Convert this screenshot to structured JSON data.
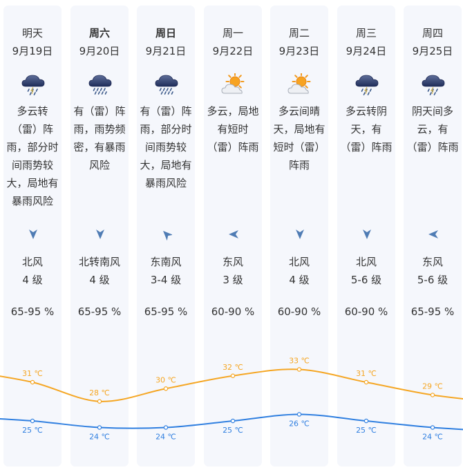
{
  "colors": {
    "high": "#f5a623",
    "low": "#2f7fe0",
    "arrow": "#4f7cb4"
  },
  "days": [
    {
      "day": "明天",
      "date": "9月19日",
      "icon": "thunder-rain-cloud-icon",
      "desc_lines": [
        "多云转",
        "（雷）阵",
        "雨，部分时",
        "间雨势较",
        "大，局地有",
        "暴雨风险"
      ],
      "wind_icon": "wind-arrow-down-icon",
      "wind_dir": "北风",
      "wind_level": "4 级",
      "humidity": "65-95 %"
    },
    {
      "day": "周六",
      "date": "9月20日",
      "icon": "heavy-rain-cloud-icon",
      "desc_lines": [
        "有（雷）阵",
        "雨，雨势频",
        "密，有暴雨",
        "风险"
      ],
      "wind_icon": "wind-arrow-down-icon",
      "wind_dir": "北转南风",
      "wind_level": "4 级",
      "humidity": "65-95 %"
    },
    {
      "day": "周日",
      "date": "9月21日",
      "icon": "heavy-rain-cloud-icon",
      "desc_lines": [
        "有（雷）阵",
        "雨，部分时",
        "间雨势较",
        "大，局地有",
        "暴雨风险"
      ],
      "wind_icon": "wind-arrow-northwest-icon",
      "wind_dir": "东南风",
      "wind_level": "3-4 级",
      "humidity": "65-95 %"
    },
    {
      "day": "周一",
      "date": "9月22日",
      "icon": "partly-cloudy-sun-icon",
      "desc_lines": [
        "多云，局地",
        "有短时",
        "（雷）阵雨"
      ],
      "wind_icon": "wind-arrow-left-icon",
      "wind_dir": "东风",
      "wind_level": "3 级",
      "humidity": "60-90 %"
    },
    {
      "day": "周二",
      "date": "9月23日",
      "icon": "partly-cloudy-sun-icon",
      "desc_lines": [
        "多云间晴",
        "天，局地有",
        "短时（雷）",
        "阵雨"
      ],
      "wind_icon": "wind-arrow-down-icon",
      "wind_dir": "北风",
      "wind_level": "4 级",
      "humidity": "60-90 %"
    },
    {
      "day": "周三",
      "date": "9月24日",
      "icon": "thunder-rain-cloud-icon",
      "desc_lines": [
        "多云转阴",
        "天，有",
        "（雷）阵雨"
      ],
      "wind_icon": "wind-arrow-down-icon",
      "wind_dir": "北风",
      "wind_level": "5-6 级",
      "humidity": "60-90 %"
    },
    {
      "day": "周四",
      "date": "9月25日",
      "icon": "thunder-rain-cloud-icon",
      "desc_lines": [
        "阴天间多",
        "云，有",
        "（雷）阵雨"
      ],
      "wind_icon": "wind-arrow-left-icon",
      "wind_dir": "东风",
      "wind_level": "5-6 级",
      "humidity": "65-95 %"
    }
  ],
  "chart_data": {
    "type": "line",
    "categories": [
      "9月19日",
      "9月20日",
      "9月21日",
      "9月22日",
      "9月23日",
      "9月24日",
      "9月25日"
    ],
    "unit": "℃",
    "series": [
      {
        "values": [
          31,
          28,
          30,
          32,
          33,
          31,
          29
        ]
      },
      {
        "values": [
          25,
          24,
          24,
          25,
          26,
          25,
          24
        ]
      }
    ]
  }
}
